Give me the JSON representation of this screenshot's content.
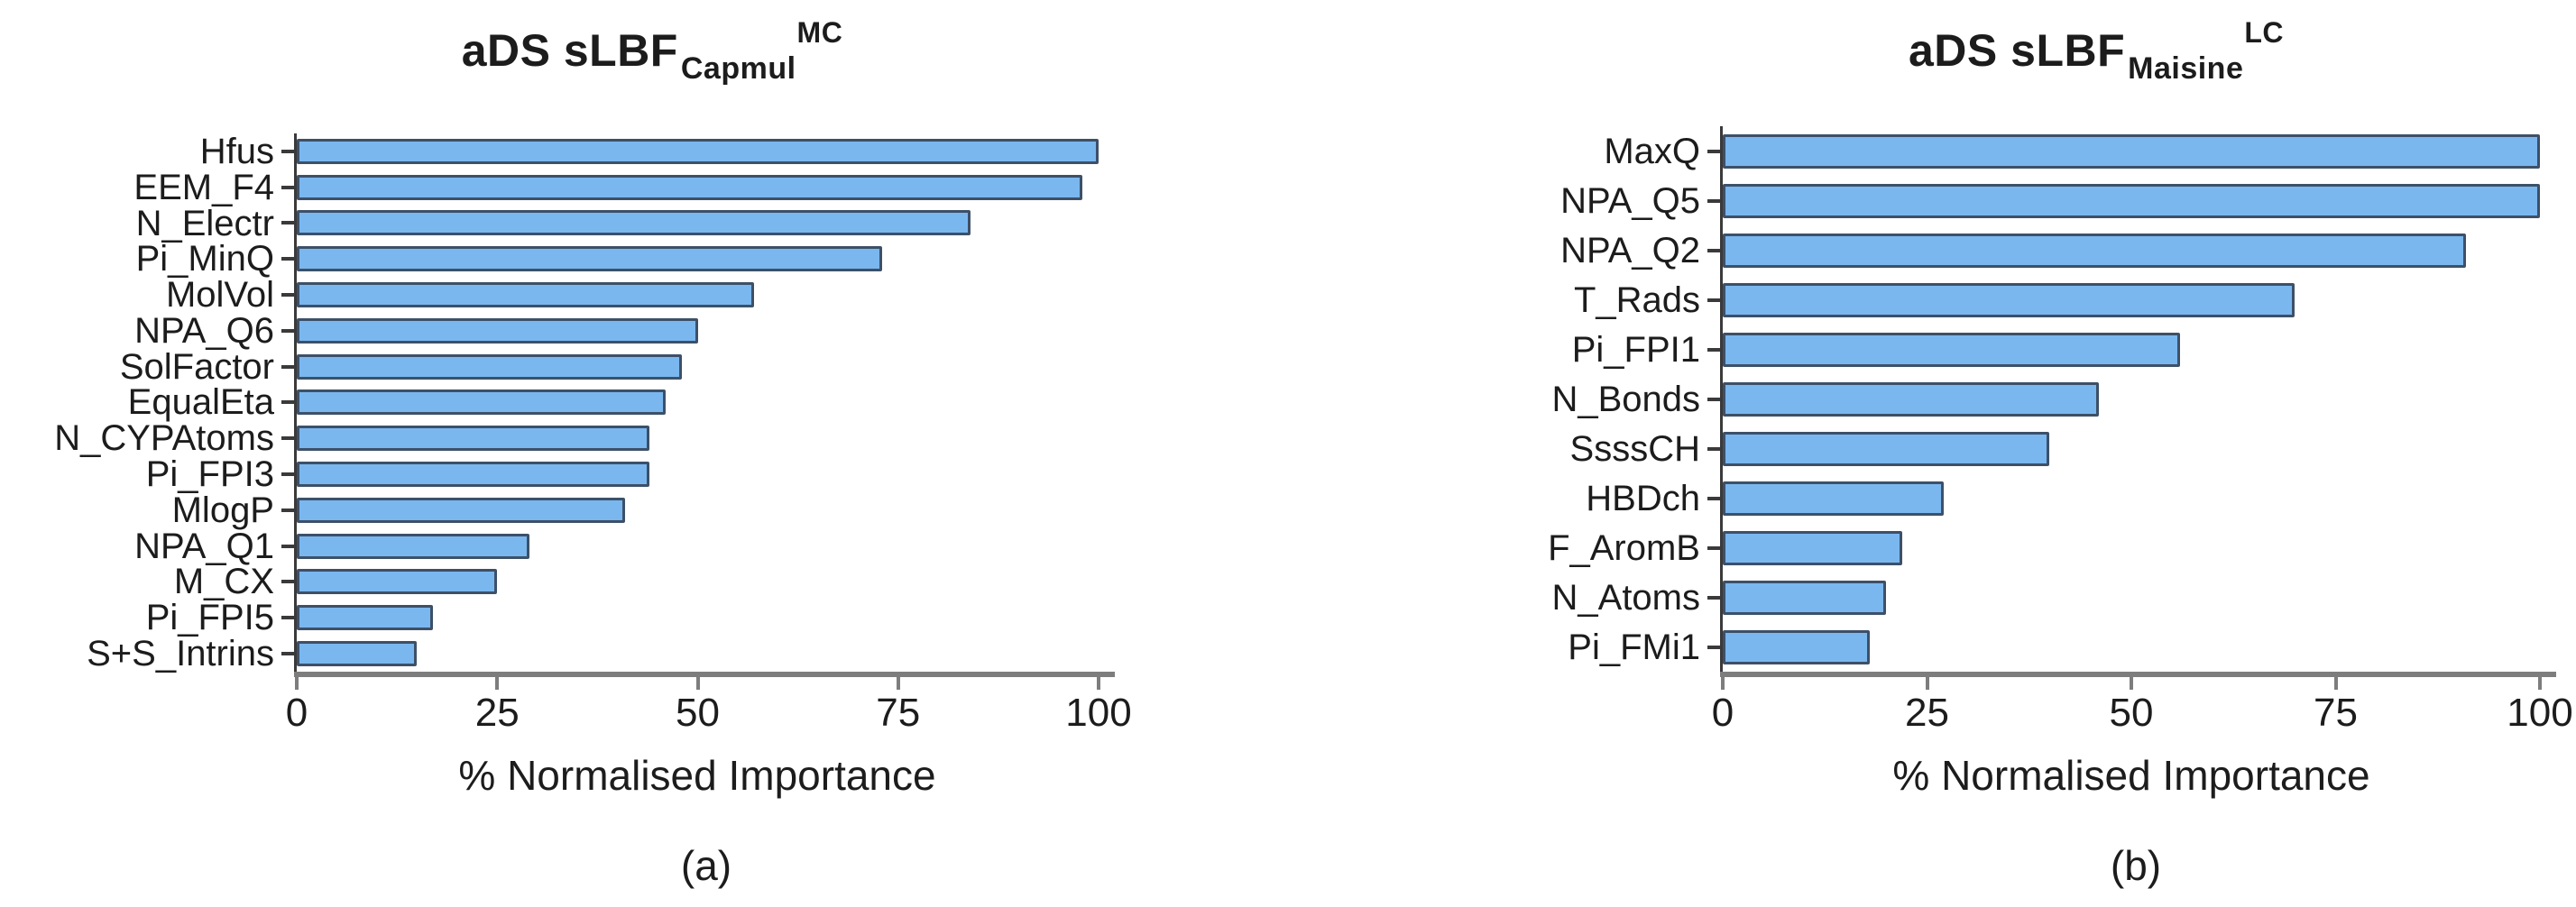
{
  "colors": {
    "bar_fill": "#7ab7ef",
    "bar_border": "#3d5068",
    "axis_gray": "#7d7d7d",
    "axis_dark": "#3a3a3a",
    "text": "#1c1c1c"
  },
  "chart_data": [
    {
      "type": "bar",
      "orientation": "horizontal",
      "title": "aDS sLBF",
      "title_sub": "Capmul",
      "title_sup": "MC",
      "caption": "(a)",
      "xlabel": "% Normalised Importance",
      "xlim": [
        0,
        100
      ],
      "x_ticks": [
        0,
        25,
        50,
        75,
        100
      ],
      "grid": false,
      "legend": null,
      "categories": [
        "Hfus",
        "EEM_F4",
        "N_Electr",
        "Pi_MinQ",
        "MolVol",
        "NPA_Q6",
        "SolFactor",
        "EqualEta",
        "N_CYPAtoms",
        "Pi_FPI3",
        "MlogP",
        "NPA_Q1",
        "M_CX",
        "Pi_FPI5",
        "S+S_Intrins"
      ],
      "values": [
        100,
        98,
        84,
        73,
        57,
        50,
        48,
        46,
        44,
        44,
        41,
        29,
        25,
        17,
        15
      ]
    },
    {
      "type": "bar",
      "orientation": "horizontal",
      "title": "aDS sLBF",
      "title_sub": "Maisine",
      "title_sup": "LC",
      "caption": "(b)",
      "xlabel": "% Normalised Importance",
      "xlim": [
        0,
        100
      ],
      "x_ticks": [
        0,
        25,
        50,
        75,
        100
      ],
      "grid": false,
      "legend": null,
      "categories": [
        "MaxQ",
        "NPA_Q5",
        "NPA_Q2",
        "T_Rads",
        "Pi_FPI1",
        "N_Bonds",
        "SsssCH",
        "HBDch",
        "F_AromB",
        "N_Atoms",
        "Pi_FMi1"
      ],
      "values": [
        100,
        100,
        91,
        70,
        56,
        46,
        40,
        27,
        22,
        20,
        18
      ]
    }
  ]
}
